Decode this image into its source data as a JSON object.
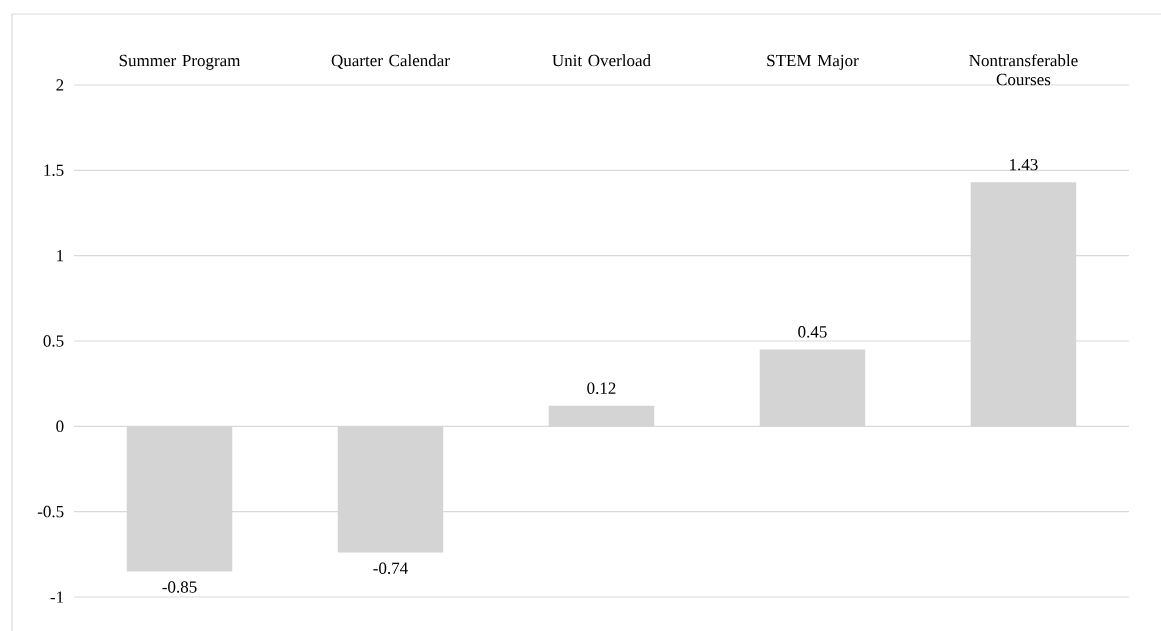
{
  "chart_data": {
    "type": "bar",
    "categories": [
      "Summer Program",
      "Quarter Calendar",
      "Unit Overload",
      "STEM Major",
      "Nontransferable Courses"
    ],
    "values": [
      -0.85,
      -0.74,
      0.12,
      0.45,
      1.43
    ],
    "color": "#d4d4d4",
    "ylim": [
      -1,
      2
    ],
    "yticks": [
      -1,
      -0.5,
      0,
      0.5,
      1,
      1.5,
      2
    ],
    "grid": "y",
    "data_labels": true
  }
}
